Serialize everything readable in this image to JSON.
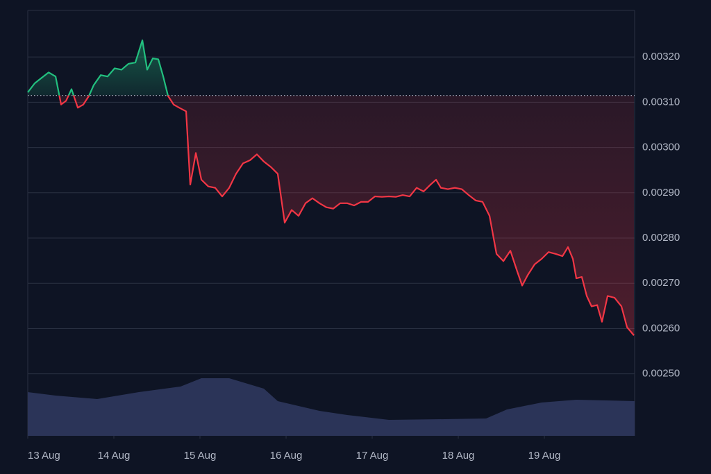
{
  "chart_data": {
    "type": "baseline-line",
    "x": [
      0,
      0.081,
      0.161,
      0.242,
      0.323,
      0.387,
      0.444,
      0.508,
      0.581,
      0.645,
      0.71,
      0.766,
      0.847,
      0.927,
      1.008,
      1.089,
      1.169,
      1.25,
      1.331,
      1.387,
      1.452,
      1.516,
      1.573,
      1.629,
      1.694,
      1.758,
      1.839,
      1.887,
      1.952,
      2.016,
      2.097,
      2.177,
      2.258,
      2.339,
      2.419,
      2.5,
      2.581,
      2.661,
      2.742,
      2.823,
      2.903,
      2.984,
      3.065,
      3.145,
      3.226,
      3.306,
      3.387,
      3.468,
      3.548,
      3.629,
      3.71,
      3.79,
      3.871,
      3.952,
      4.032,
      4.113,
      4.194,
      4.274,
      4.355,
      4.435,
      4.516,
      4.597,
      4.677,
      4.742,
      4.798,
      4.879,
      4.96,
      5.04,
      5.121,
      5.202,
      5.282,
      5.363,
      5.444,
      5.524,
      5.605,
      5.685,
      5.742,
      5.806,
      5.887,
      5.968,
      6.048,
      6.129,
      6.21,
      6.274,
      6.331,
      6.371,
      6.435,
      6.492,
      6.548,
      6.613,
      6.669,
      6.734,
      6.815,
      6.895,
      6.96,
      7.04
    ],
    "values": [
      0.003122,
      0.003142,
      0.003154,
      0.003166,
      0.003157,
      0.003095,
      0.003103,
      0.003129,
      0.003088,
      0.003095,
      0.003114,
      0.003138,
      0.00316,
      0.003157,
      0.003175,
      0.003172,
      0.003185,
      0.003188,
      0.003237,
      0.003172,
      0.003197,
      0.003195,
      0.003157,
      0.003114,
      0.003095,
      0.003088,
      0.00308,
      0.002918,
      0.002988,
      0.002929,
      0.002914,
      0.002911,
      0.002892,
      0.002911,
      0.002942,
      0.002965,
      0.002972,
      0.002985,
      0.002969,
      0.002957,
      0.002942,
      0.002834,
      0.002862,
      0.002849,
      0.002877,
      0.002888,
      0.002877,
      0.002868,
      0.002865,
      0.002877,
      0.002877,
      0.002872,
      0.00288,
      0.00288,
      0.002892,
      0.002891,
      0.002892,
      0.002891,
      0.002895,
      0.002892,
      0.002911,
      0.002903,
      0.002918,
      0.002929,
      0.002911,
      0.002908,
      0.002911,
      0.002908,
      0.002895,
      0.002883,
      0.00288,
      0.002849,
      0.002765,
      0.002749,
      0.002772,
      0.002726,
      0.002695,
      0.002718,
      0.002742,
      0.002754,
      0.002769,
      0.002765,
      0.00276,
      0.00278,
      0.002754,
      0.002711,
      0.002714,
      0.002672,
      0.002649,
      0.002652,
      0.002615,
      0.002672,
      0.002668,
      0.002649,
      0.002603,
      0.002585
    ],
    "baseline": 0.003115,
    "up_color": "#22c07f",
    "down_color": "#f23645",
    "volume": {
      "x": [
        0,
        0.323,
        0.806,
        1.29,
        1.774,
        2.016,
        2.339,
        2.742,
        2.903,
        3.387,
        3.71,
        4.194,
        4.839,
        5.323,
        5.565,
        5.968,
        6.371,
        7.048
      ],
      "values": [
        63,
        58,
        53,
        63,
        71,
        83,
        83,
        68,
        50,
        36,
        30,
        23,
        24,
        25,
        38,
        48,
        52,
        50
      ],
      "vlim": [
        0,
        100
      ],
      "color": "#2b3458"
    },
    "xlim": [
      0,
      7.048
    ],
    "xticks": [
      {
        "value": 0,
        "label": "13 Aug"
      },
      {
        "value": 1,
        "label": "14 Aug"
      },
      {
        "value": 2,
        "label": "15 Aug"
      },
      {
        "value": 3,
        "label": "16 Aug"
      },
      {
        "value": 4,
        "label": "17 Aug"
      },
      {
        "value": 5,
        "label": "18 Aug"
      },
      {
        "value": 6,
        "label": "19 Aug"
      }
    ],
    "ylim": [
      0.002363,
      0.003303
    ],
    "yticks": [
      {
        "value": 0.0032,
        "label": "0.00320"
      },
      {
        "value": 0.0031,
        "label": "0.00310"
      },
      {
        "value": 0.003,
        "label": "0.00300"
      },
      {
        "value": 0.0029,
        "label": "0.00290"
      },
      {
        "value": 0.0028,
        "label": "0.00280"
      },
      {
        "value": 0.0027,
        "label": "0.00270"
      },
      {
        "value": 0.0026,
        "label": "0.00260"
      },
      {
        "value": 0.0025,
        "label": "0.00250"
      }
    ],
    "grid": true
  }
}
